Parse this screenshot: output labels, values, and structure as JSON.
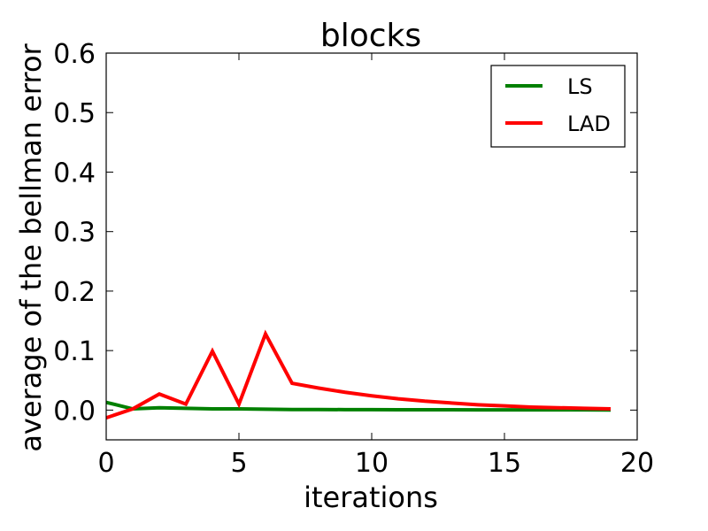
{
  "chart_data": {
    "type": "line",
    "title": "blocks",
    "xlabel": "iterations",
    "ylabel": "average of the bellman error",
    "xlim": [
      0,
      20
    ],
    "ylim": [
      -0.05,
      0.6
    ],
    "xticks": [
      0,
      5,
      10,
      15,
      20
    ],
    "xtick_labels": [
      "0",
      "5",
      "10",
      "15",
      "20"
    ],
    "yticks": [
      0.0,
      0.1,
      0.2,
      0.3,
      0.4,
      0.5,
      0.6
    ],
    "ytick_labels": [
      "0.0",
      "0.1",
      "0.2",
      "0.3",
      "0.4",
      "0.5",
      "0.6"
    ],
    "grid": false,
    "legend_position": "top-right",
    "x": [
      0,
      1,
      2,
      3,
      4,
      5,
      6,
      7,
      8,
      9,
      10,
      11,
      12,
      13,
      14,
      15,
      16,
      17,
      18,
      19
    ],
    "series": [
      {
        "name": "LS",
        "color": "#008000",
        "values": [
          0.013,
          0.002,
          0.004,
          0.003,
          0.002,
          0.002,
          0.0015,
          0.001,
          0.001,
          0.0008,
          0.0007,
          0.0006,
          0.0005,
          0.0005,
          0.0004,
          0.0004,
          0.0003,
          0.0003,
          0.0003,
          0.0002
        ]
      },
      {
        "name": "LAD",
        "color": "#ff0000",
        "values": [
          -0.013,
          0.002,
          0.027,
          0.01,
          0.099,
          0.01,
          0.128,
          0.045,
          0.037,
          0.03,
          0.024,
          0.019,
          0.015,
          0.012,
          0.009,
          0.007,
          0.005,
          0.004,
          0.003,
          0.002
        ]
      }
    ]
  }
}
